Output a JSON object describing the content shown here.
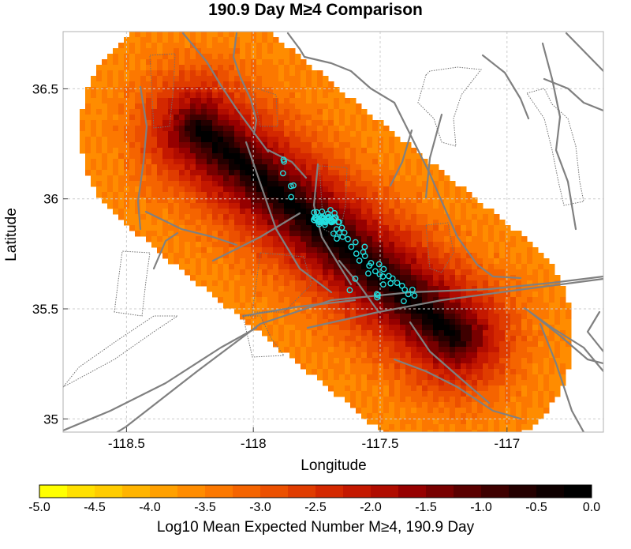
{
  "title": "190.9 Day M≥4 Comparison",
  "x_axis": {
    "label": "Longitude",
    "range": [
      -118.75,
      -116.62
    ],
    "ticks": [
      -118.5,
      -118,
      -117.5,
      -117
    ],
    "tick_labels": [
      "-118.5",
      "-118",
      "-117.5",
      "-117"
    ]
  },
  "y_axis": {
    "label": "Latitude",
    "range": [
      34.94,
      36.76
    ],
    "ticks": [
      35,
      35.5,
      36,
      36.5
    ],
    "tick_labels": [
      "35",
      "35.5",
      "36",
      "36.5"
    ]
  },
  "colorbar": {
    "label": "Log10 Mean Expected Number M≥4, 190.9 Day",
    "min": -5.0,
    "max": 0.0,
    "ticks": [
      -5.0,
      -4.5,
      -4.0,
      -3.5,
      -3.0,
      -2.5,
      -2.0,
      -1.5,
      -1.0,
      -0.5,
      0.0
    ],
    "tick_labels": [
      "-5.0",
      "-4.5",
      "-4.0",
      "-3.5",
      "-3.0",
      "-2.5",
      "-2.0",
      "-1.5",
      "-1.0",
      "-0.5",
      "0.0"
    ],
    "colors": [
      "#ffff00",
      "#ffe000",
      "#ffcc00",
      "#ffb400",
      "#ffa000",
      "#ff8c00",
      "#fc7800",
      "#f56400",
      "#ec5000",
      "#e03c00",
      "#d42800",
      "#c41800",
      "#b00c00",
      "#960000",
      "#780000",
      "#5a0000",
      "#3e0000",
      "#240000",
      "#0e0000",
      "#000000"
    ]
  },
  "colors": {
    "fault": "#808080",
    "earthquake_marker": "#22dddd",
    "grid": "#cccccc"
  },
  "chart_data": {
    "type": "heatmap",
    "title": "190.9 Day M≥4 Comparison",
    "xlabel": "Longitude",
    "ylabel": "Latitude",
    "xlim": [
      -118.75,
      -116.62
    ],
    "ylim": [
      34.94,
      36.76
    ],
    "colorbar_label": "Log10 Mean Expected Number M≥4, 190.9 Day",
    "colorbar_range": [
      -5.0,
      0.0
    ],
    "grid": true,
    "rupture_axis": {
      "start": [
        -118.21,
        36.31
      ],
      "end": [
        -117.21,
        35.38
      ]
    },
    "earthquakes": [
      [
        -117.881,
        36.178
      ],
      [
        -117.879,
        36.169
      ],
      [
        -117.883,
        36.116
      ],
      [
        -117.852,
        36.058
      ],
      [
        -117.842,
        36.061
      ],
      [
        -117.851,
        36.008
      ],
      [
        -117.761,
        35.938
      ],
      [
        -117.75,
        35.939
      ],
      [
        -117.729,
        35.942
      ],
      [
        -117.706,
        35.932
      ],
      [
        -117.696,
        35.949
      ],
      [
        -117.73,
        35.919
      ],
      [
        -117.702,
        35.918
      ],
      [
        -117.689,
        35.9
      ],
      [
        -117.741,
        35.884
      ],
      [
        -117.68,
        35.935
      ],
      [
        -117.718,
        35.882
      ],
      [
        -117.662,
        35.895
      ],
      [
        -117.651,
        35.869
      ],
      [
        -117.672,
        35.862
      ],
      [
        -117.661,
        35.846
      ],
      [
        -117.684,
        35.842
      ],
      [
        -117.641,
        35.846
      ],
      [
        -117.671,
        35.819
      ],
      [
        -117.648,
        35.827
      ],
      [
        -117.665,
        35.894
      ],
      [
        -117.627,
        35.817
      ],
      [
        -117.597,
        35.803
      ],
      [
        -117.614,
        35.782
      ],
      [
        -117.561,
        35.782
      ],
      [
        -117.594,
        35.751
      ],
      [
        -117.567,
        35.758
      ],
      [
        -117.582,
        35.719
      ],
      [
        -117.536,
        35.708
      ],
      [
        -117.543,
        35.696
      ],
      [
        -117.504,
        35.703
      ],
      [
        -117.519,
        35.671
      ],
      [
        -117.486,
        35.681
      ],
      [
        -117.547,
        35.661
      ],
      [
        -117.502,
        35.657
      ],
      [
        -117.489,
        35.647
      ],
      [
        -117.466,
        35.649
      ],
      [
        -117.451,
        35.638
      ],
      [
        -117.459,
        35.616
      ],
      [
        -117.433,
        35.618
      ],
      [
        -117.488,
        35.611
      ],
      [
        -117.414,
        35.605
      ],
      [
        -117.403,
        35.587
      ],
      [
        -117.389,
        35.567
      ],
      [
        -117.373,
        35.587
      ],
      [
        -117.365,
        35.56
      ],
      [
        -117.513,
        35.567
      ],
      [
        -117.509,
        35.562
      ],
      [
        -117.512,
        35.552
      ],
      [
        -117.407,
        35.535
      ],
      [
        -117.62,
        35.585
      ],
      [
        -117.598,
        35.637
      ],
      [
        -117.56,
        35.74
      ],
      [
        -117.7,
        35.9
      ],
      [
        -117.72,
        35.9
      ]
    ]
  }
}
